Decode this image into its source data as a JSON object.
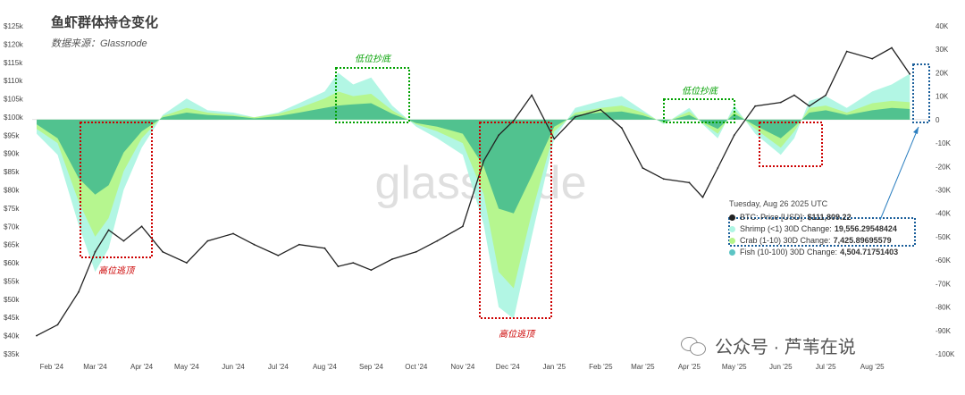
{
  "title": "鱼虾群体持仓变化",
  "subtitle": "数据来源：Glassnode",
  "watermark": "glassnode",
  "wechat": "公众号 · 芦苇在说",
  "tooltip": {
    "date": "Tuesday, Aug 26 2025 UTC",
    "rows": [
      {
        "label": "BTC: Price [USD]:",
        "value": "$111,809.22",
        "color": "#222222"
      },
      {
        "label": "Shrimp (<1) 30D Change:",
        "value": "19,556.29548424",
        "color": "#aef5e3"
      },
      {
        "label": "Crab (1-10) 30D Change:",
        "value": "7,425.89695579",
        "color": "#b6f58a"
      },
      {
        "label": "Fish (10-100) 30D Change:",
        "value": "4,504.71751403",
        "color": "#5cc4c4"
      }
    ]
  },
  "annotations": [
    {
      "text": "高位逃顶",
      "color": "#cc0000"
    },
    {
      "text": "高位逃顶",
      "color": "#cc0000"
    },
    {
      "text": "低位抄底",
      "color": "#00a000"
    },
    {
      "text": "低位抄底",
      "color": "#00a000"
    }
  ],
  "chart_data": {
    "type": "area",
    "x_ticks": [
      "Feb '24",
      "Mar '24",
      "Apr '24",
      "May '24",
      "Jun '24",
      "Jul '24",
      "Aug '24",
      "Sep '24",
      "Oct '24",
      "Nov '24",
      "Dec '24",
      "Jan '25",
      "Feb '25",
      "Mar '25",
      "Apr '25",
      "May '25",
      "Jun '25",
      "Jul '25",
      "Aug '25"
    ],
    "y_left_ticks": [
      "$35k",
      "$40k",
      "$45k",
      "$50k",
      "$55k",
      "$60k",
      "$65k",
      "$70k",
      "$75k",
      "$80k",
      "$85k",
      "$90k",
      "$95k",
      "$100k",
      "$105k",
      "$110k",
      "$115k",
      "$120k",
      "$125k"
    ],
    "y_right_ticks": [
      "40K",
      "30K",
      "20K",
      "10K",
      "0",
      "-10K",
      "-20K",
      "-30K",
      "-40K",
      "-50K",
      "-60K",
      "-70K",
      "-80K",
      "-90K",
      "-100K"
    ],
    "y_left_lim": [
      35000,
      125000
    ],
    "y_right_lim": [
      -100000,
      40000
    ],
    "x": [
      "2024-01-22",
      "2024-02-05",
      "2024-02-19",
      "2024-03-01",
      "2024-03-10",
      "2024-03-20",
      "2024-04-01",
      "2024-04-15",
      "2024-05-01",
      "2024-05-15",
      "2024-06-01",
      "2024-06-15",
      "2024-07-01",
      "2024-07-15",
      "2024-08-01",
      "2024-08-10",
      "2024-08-20",
      "2024-09-01",
      "2024-09-15",
      "2024-10-01",
      "2024-10-15",
      "2024-11-01",
      "2024-11-15",
      "2024-11-25",
      "2024-12-05",
      "2024-12-17",
      "2025-01-01",
      "2025-01-15",
      "2025-02-01",
      "2025-02-15",
      "2025-03-01",
      "2025-03-15",
      "2025-04-01",
      "2025-04-10",
      "2025-04-20",
      "2025-05-01",
      "2025-05-15",
      "2025-06-01",
      "2025-06-10",
      "2025-06-20",
      "2025-07-01",
      "2025-07-15",
      "2025-08-01",
      "2025-08-14",
      "2025-08-26"
    ],
    "series": [
      {
        "name": "BTC: Price [USD]",
        "axis": "left",
        "color": "#222222",
        "values": [
          40000,
          43000,
          52000,
          63000,
          69000,
          66000,
          70000,
          63000,
          60000,
          66000,
          68000,
          65000,
          62000,
          65000,
          64000,
          59000,
          60000,
          58000,
          61000,
          63000,
          66000,
          70000,
          88000,
          95000,
          99000,
          106000,
          94000,
          100000,
          102000,
          97000,
          86000,
          83000,
          82000,
          78000,
          86000,
          95000,
          103000,
          104000,
          106000,
          103000,
          106000,
          118000,
          116000,
          119000,
          111809
        ]
      },
      {
        "name": "Shrimp (<1) 30D Change",
        "axis": "right",
        "color": "#aef5e3",
        "values": [
          -6000,
          -15000,
          -45000,
          -65000,
          -55000,
          -30000,
          -12000,
          2000,
          9000,
          4000,
          3000,
          1000,
          3000,
          7000,
          12000,
          20000,
          15000,
          18000,
          6000,
          -3000,
          -8000,
          -15000,
          -45000,
          -80000,
          -85000,
          -50000,
          -8000,
          5000,
          8000,
          10000,
          4000,
          -2000,
          5000,
          -2000,
          -8000,
          6000,
          -6000,
          -15000,
          -8000,
          8000,
          10000,
          5000,
          12000,
          15000,
          19556
        ]
      },
      {
        "name": "Crab (1-10) 30D Change",
        "axis": "right",
        "color": "#b6f58a",
        "values": [
          -4000,
          -10000,
          -35000,
          -50000,
          -42000,
          -22000,
          -8000,
          1500,
          5000,
          3000,
          2000,
          1000,
          2500,
          5000,
          9000,
          12000,
          10000,
          11000,
          4000,
          -2000,
          -5000,
          -10000,
          -32000,
          -65000,
          -72000,
          -40000,
          -5000,
          3000,
          5000,
          6000,
          3000,
          -1500,
          3500,
          -1500,
          -6000,
          4000,
          -4000,
          -12000,
          -5000,
          5000,
          6000,
          3000,
          7000,
          8000,
          7426
        ]
      },
      {
        "name": "Fish (10-100) 30D Change",
        "axis": "right",
        "color": "#4cbf8f",
        "values": [
          -2000,
          -8000,
          -25000,
          -32000,
          -28000,
          -14000,
          -5000,
          1000,
          3000,
          2000,
          1500,
          500,
          1500,
          3000,
          5000,
          6000,
          6500,
          7000,
          2500,
          -1500,
          -3000,
          -6000,
          -20000,
          -38000,
          -40000,
          -24000,
          -3000,
          2000,
          3000,
          3500,
          1800,
          -1000,
          2000,
          -1000,
          -4000,
          2500,
          -2500,
          -8000,
          -3000,
          3000,
          4000,
          2000,
          4000,
          5000,
          4505
        ]
      }
    ]
  }
}
